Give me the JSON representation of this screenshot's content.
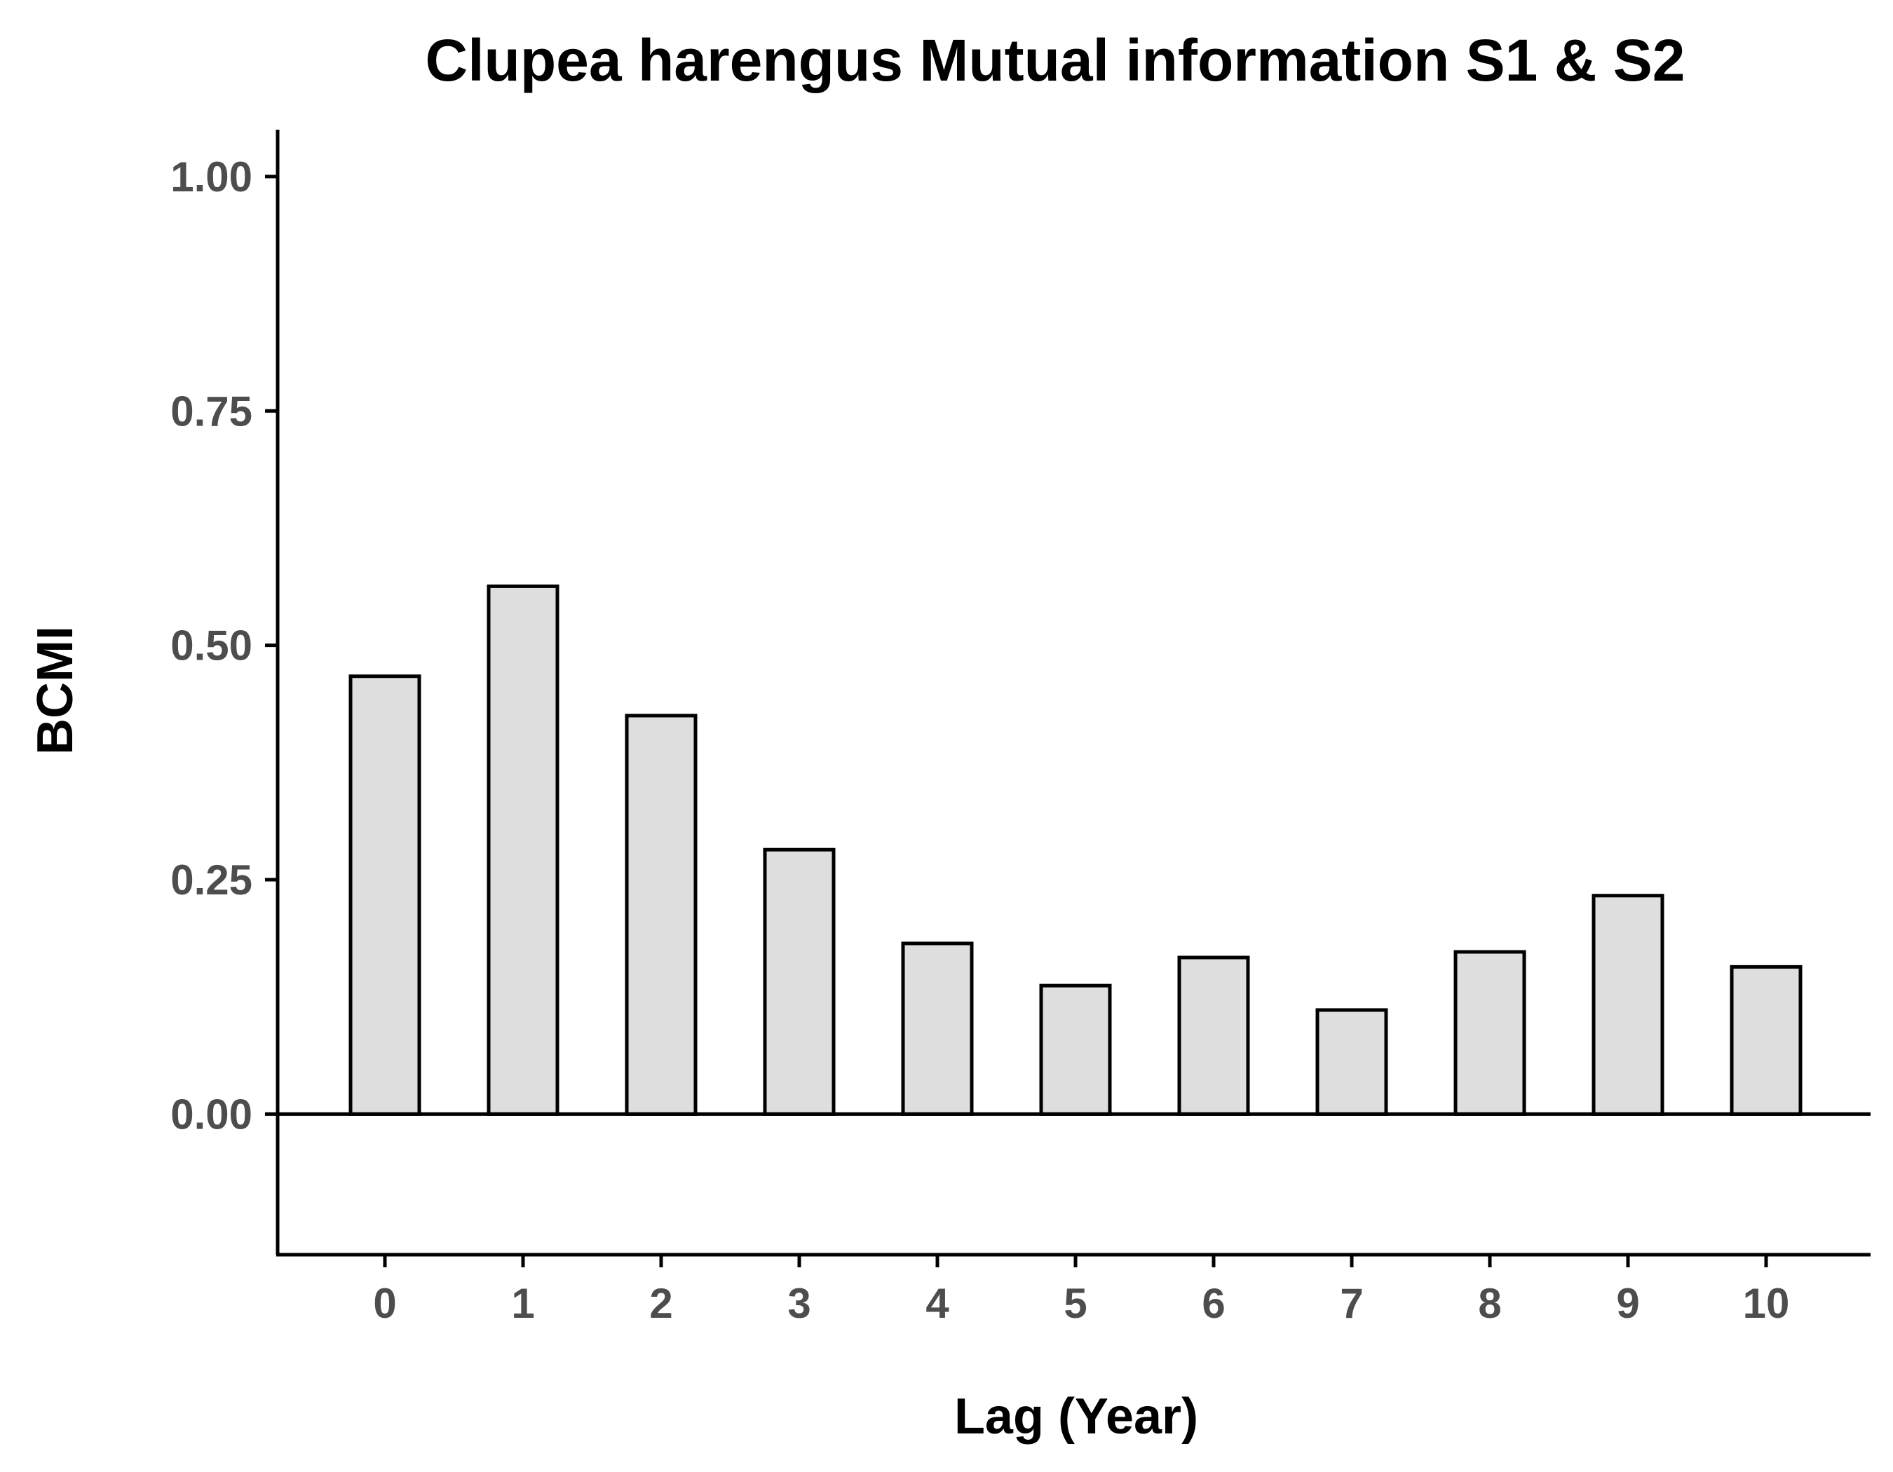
{
  "chart_data": {
    "type": "bar",
    "title": "Clupea harengus Mutual information S1 & S2",
    "xlabel": "Lag (Year)",
    "ylabel": "BCMI",
    "categories": [
      "0",
      "1",
      "2",
      "3",
      "4",
      "5",
      "6",
      "7",
      "8",
      "9",
      "10"
    ],
    "values": [
      0.467,
      0.563,
      0.425,
      0.282,
      0.182,
      0.137,
      0.167,
      0.111,
      0.173,
      0.233,
      0.157
    ],
    "ylim": [
      -0.15,
      1.05
    ],
    "yticks": [
      "0.00",
      "0.25",
      "0.50",
      "0.75",
      "1.00"
    ],
    "ytick_values": [
      0,
      0.25,
      0.5,
      0.75,
      1.0
    ],
    "grid": false,
    "legend": "none",
    "colors": {
      "bar_fill": "#dedede",
      "bar_stroke": "#000000",
      "axis": "#000000",
      "tick_text": "#4d4d4d"
    }
  }
}
